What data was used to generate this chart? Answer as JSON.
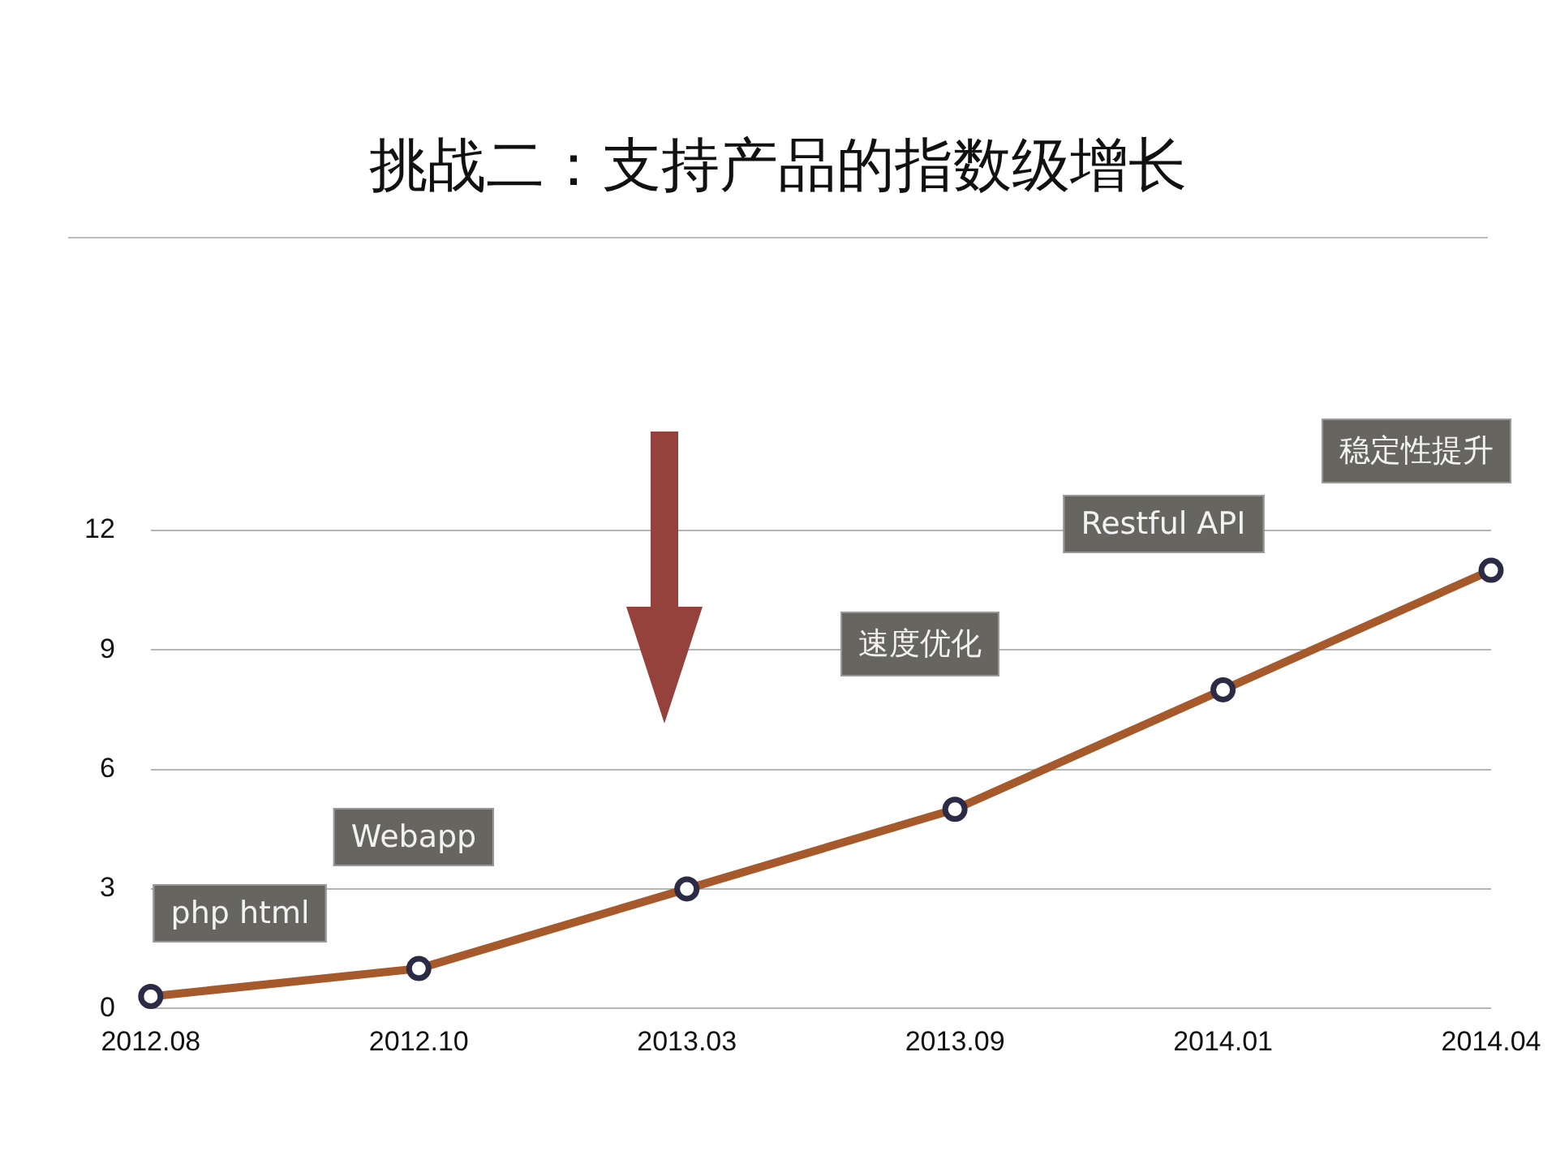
{
  "chart_data": {
    "type": "line",
    "title": "挑战二：支持产品的指数级增长",
    "categories": [
      "2012.08",
      "2012.10",
      "2013.03",
      "2013.09",
      "2014.01",
      "2014.04"
    ],
    "series": [
      {
        "color": "#a65a2c",
        "values": [
          0.3,
          1,
          3,
          5,
          8,
          11
        ]
      }
    ],
    "ylim": [
      0,
      12
    ],
    "yticks": [
      0,
      3,
      6,
      9,
      12
    ],
    "grid": "y",
    "legend": false,
    "marker": "circle",
    "line_style": "solid",
    "annotations": [
      "php html",
      "Webapp",
      "速度优化",
      "Restful API",
      "稳定性提升"
    ]
  }
}
